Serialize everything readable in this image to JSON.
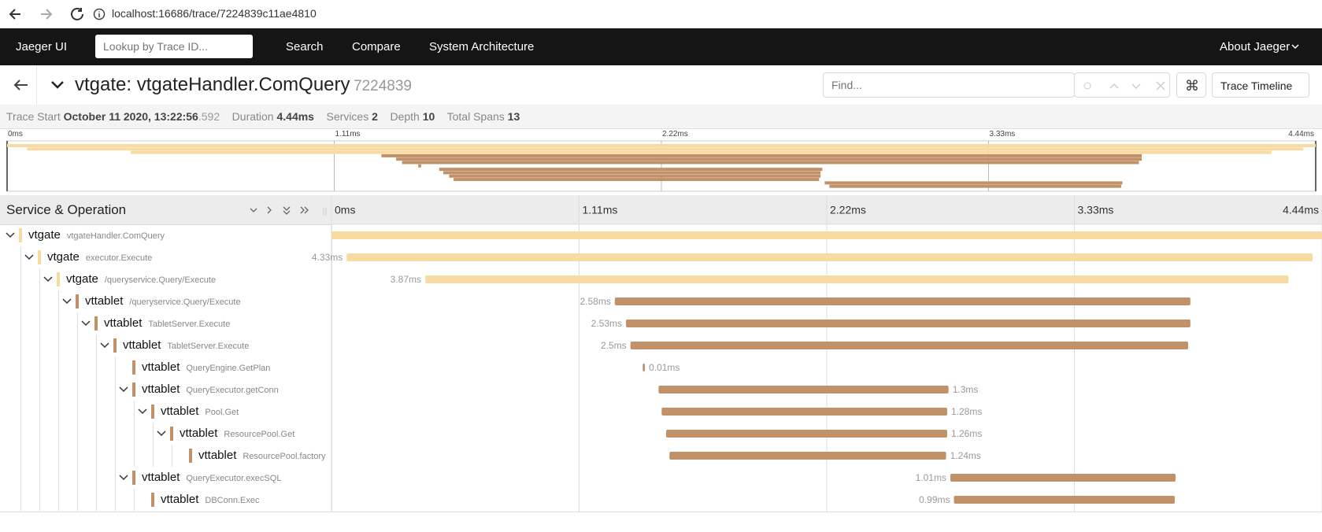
{
  "browser": {
    "url": "localhost:16686/trace/7224839c11ae4810"
  },
  "nav": {
    "brand": "Jaeger UI",
    "lookup_placeholder": "Lookup by Trace ID...",
    "links": [
      "Search",
      "Compare",
      "System Architecture"
    ],
    "about": "About Jaeger"
  },
  "trace": {
    "title": "vtgate: vtgateHandler.ComQuery",
    "id": "7224839",
    "find_placeholder": "Find...",
    "view": "Trace Timeline",
    "summary": {
      "start_label": "Trace Start",
      "start": "October 11 2020, 13:22:56",
      "start_ms": ".592",
      "duration_label": "Duration",
      "duration": "4.44ms",
      "services_label": "Services",
      "services": 2,
      "depth_label": "Depth",
      "depth": 10,
      "spans_label": "Total Spans",
      "spans": 13
    }
  },
  "timeline": {
    "header": "Service & Operation",
    "xlim": [
      0,
      4.44
    ],
    "ticks": [
      {
        "value": 0,
        "label": "0ms"
      },
      {
        "value": 1.11,
        "label": "1.11ms"
      },
      {
        "value": 2.22,
        "label": "2.22ms"
      },
      {
        "value": 3.33,
        "label": "3.33ms"
      },
      {
        "value": 4.44,
        "label": "4.44ms"
      }
    ],
    "service_colors": {
      "vtgate": "#f8dba2",
      "vttablet": "#c19269"
    },
    "spans": [
      {
        "service": "vtgate",
        "operation": "vtgateHandler.ComQuery",
        "depth": 0,
        "start": 0,
        "duration": 4.44
      },
      {
        "service": "vtgate",
        "operation": "executor.Execute",
        "depth": 1,
        "start": 0.068,
        "duration": 4.33,
        "label": "4.33ms"
      },
      {
        "service": "vtgate",
        "operation": "/queryservice.Query/Execute",
        "depth": 2,
        "start": 0.42,
        "duration": 3.87,
        "label": "3.87ms"
      },
      {
        "service": "vttablet",
        "operation": "/queryservice.Query/Execute",
        "depth": 3,
        "start": 1.27,
        "duration": 2.58,
        "label": "2.58ms"
      },
      {
        "service": "vttablet",
        "operation": "TabletServer.Execute",
        "depth": 4,
        "start": 1.32,
        "duration": 2.53,
        "label": "2.53ms"
      },
      {
        "service": "vttablet",
        "operation": "TabletServer.Execute",
        "depth": 5,
        "start": 1.34,
        "duration": 2.5,
        "label": "2.5ms"
      },
      {
        "service": "vttablet",
        "operation": "QueryEngine.GetPlan",
        "depth": 6,
        "start": 1.395,
        "duration": 0.01,
        "label": "0.01ms"
      },
      {
        "service": "vttablet",
        "operation": "QueryExecutor.getConn",
        "depth": 6,
        "start": 1.466,
        "duration": 1.3,
        "label": "1.3ms"
      },
      {
        "service": "vttablet",
        "operation": "Pool.Get",
        "depth": 7,
        "start": 1.48,
        "duration": 1.28,
        "label": "1.28ms"
      },
      {
        "service": "vttablet",
        "operation": "ResourcePool.Get",
        "depth": 8,
        "start": 1.5,
        "duration": 1.26,
        "label": "1.26ms"
      },
      {
        "service": "vttablet",
        "operation": "ResourcePool.factory",
        "depth": 9,
        "start": 1.515,
        "duration": 1.24,
        "label": "1.24ms"
      },
      {
        "service": "vttablet",
        "operation": "QueryExecutor.execSQL",
        "depth": 6,
        "start": 2.774,
        "duration": 1.01,
        "label": "1.01ms"
      },
      {
        "service": "vttablet",
        "operation": "DBConn.Exec",
        "depth": 7,
        "start": 2.79,
        "duration": 0.99,
        "label": "0.99ms"
      }
    ]
  }
}
